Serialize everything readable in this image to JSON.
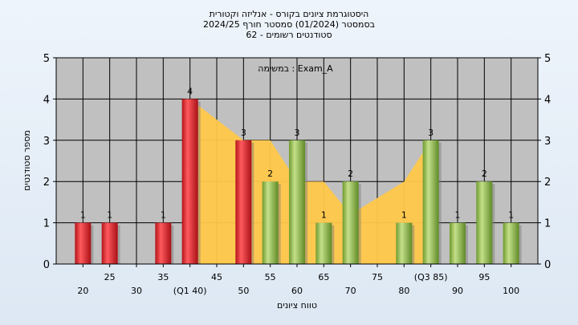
{
  "titles": [
    "היסטוגרמת ציונים בקורס - אנליזה וקטורית",
    "בסמסטר  (01/2024)  סמסטר חורף 2024/25",
    "סטודנטים רשומים - 62"
  ],
  "chart_data": {
    "type": "bar",
    "title": "היסטוגרמת ציונים בקורס - אנליזה וקטורית",
    "xlabel": "טווח ציונים",
    "ylabel": "מספר סטודנטים",
    "annotation": "במשימה : Exam_A",
    "ylim": [
      0,
      5
    ],
    "yticks": [
      0,
      1,
      2,
      3,
      4,
      5
    ],
    "xlim": [
      15,
      105
    ],
    "xticks": [
      {
        "value": 20,
        "label": "20",
        "row": 2
      },
      {
        "value": 25,
        "label": "25",
        "row": 1
      },
      {
        "value": 30,
        "label": "30",
        "row": 2
      },
      {
        "value": 35,
        "label": "35",
        "row": 1
      },
      {
        "value": 40,
        "label": "(Q1 40)",
        "row": 2
      },
      {
        "value": 45,
        "label": "45",
        "row": 1
      },
      {
        "value": 50,
        "label": "50",
        "row": 2
      },
      {
        "value": 55,
        "label": "55",
        "row": 1
      },
      {
        "value": 60,
        "label": "60",
        "row": 2
      },
      {
        "value": 65,
        "label": "65",
        "row": 1
      },
      {
        "value": 70,
        "label": "70",
        "row": 2
      },
      {
        "value": 75,
        "label": "75",
        "row": 1
      },
      {
        "value": 80,
        "label": "80",
        "row": 2
      },
      {
        "value": 85,
        "label": "(Q3 85)",
        "row": 1
      },
      {
        "value": 90,
        "label": "90",
        "row": 2
      },
      {
        "value": 95,
        "label": "95",
        "row": 1
      },
      {
        "value": 100,
        "label": "100",
        "row": 2
      }
    ],
    "bars": [
      {
        "x": 20,
        "value": 1,
        "color": "red"
      },
      {
        "x": 25,
        "value": 1,
        "color": "red"
      },
      {
        "x": 35,
        "value": 1,
        "color": "red"
      },
      {
        "x": 40,
        "value": 4,
        "color": "red"
      },
      {
        "x": 50,
        "value": 3,
        "color": "red"
      },
      {
        "x": 55,
        "value": 2,
        "color": "green"
      },
      {
        "x": 60,
        "value": 3,
        "color": "green"
      },
      {
        "x": 65,
        "value": 1,
        "color": "green"
      },
      {
        "x": 70,
        "value": 2,
        "color": "green"
      },
      {
        "x": 80,
        "value": 1,
        "color": "green"
      },
      {
        "x": 85,
        "value": 3,
        "color": "green"
      },
      {
        "x": 90,
        "value": 1,
        "color": "green"
      },
      {
        "x": 95,
        "value": 2,
        "color": "green"
      },
      {
        "x": 100,
        "value": 1,
        "color": "green"
      }
    ],
    "area_band": {
      "x": [
        40,
        50,
        55,
        60,
        65,
        70,
        75,
        80,
        85
      ],
      "y": [
        4,
        3,
        3,
        2,
        2,
        1.2,
        1.6,
        2,
        3
      ]
    },
    "grid": true,
    "colors": {
      "plot_bg": "#c0c0c0",
      "area": "#ffc84a",
      "red": "#e0262a",
      "green": "#8fbb46"
    }
  }
}
